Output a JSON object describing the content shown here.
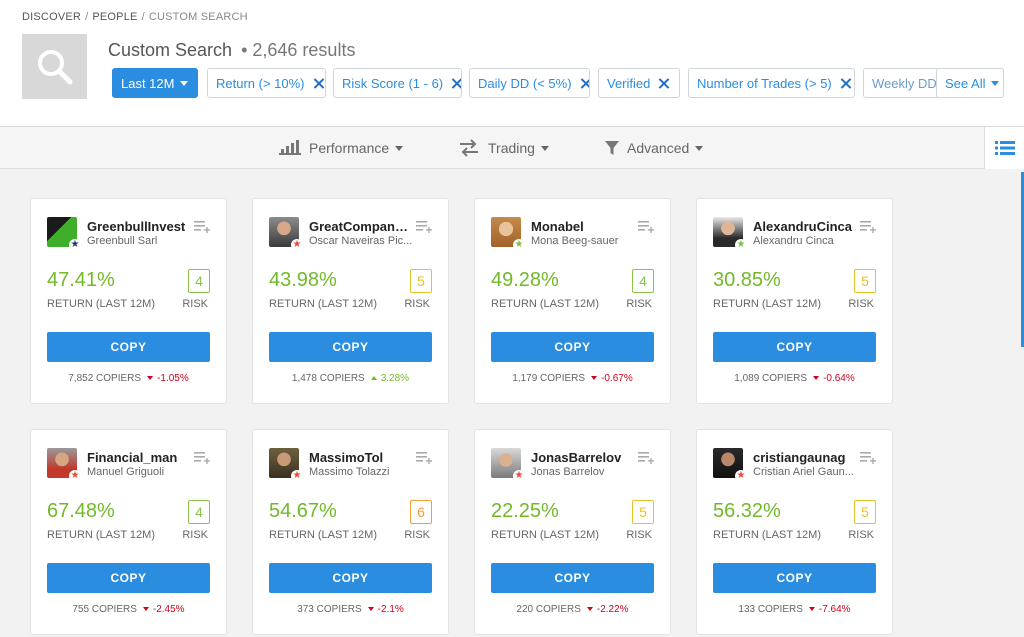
{
  "breadcrumb": {
    "discover": "DISCOVER",
    "people": "PEOPLE",
    "current": "CUSTOM SEARCH",
    "sep": "/"
  },
  "header": {
    "title": "Custom Search",
    "results": "• 2,646 results"
  },
  "filters": {
    "period": "Last 12M",
    "chips": [
      {
        "label": "Return (> 10%)"
      },
      {
        "label": "Risk Score (1 - 6)"
      },
      {
        "label": "Daily DD (< 5%)"
      },
      {
        "label": "Verified"
      },
      {
        "label": "Number of Trades (> 5)"
      },
      {
        "label": "Weekly DD"
      }
    ],
    "see_all": "See All"
  },
  "tabs": [
    {
      "label": "Performance",
      "icon": "bar-chart-icon"
    },
    {
      "label": "Trading",
      "icon": "swap-arrows-icon"
    },
    {
      "label": "Advanced",
      "icon": "funnel-icon"
    }
  ],
  "labels": {
    "return": "RETURN (LAST 12M)",
    "risk": "RISK",
    "copy": "COPY"
  },
  "colors": {
    "accent": "#2a8de0",
    "positive": "#72b92a",
    "negative": "#d0021b",
    "risk_low": "#8bc34a",
    "risk_mid": "#e6c229",
    "risk_high": "#f0a030"
  },
  "traders": [
    {
      "username": "GreenbullInvest",
      "fullname": "Greenbull Sarl",
      "return": "47.41%",
      "risk": "4",
      "copiers": "7,852 COPIERS",
      "change": "-1.05%",
      "direction": "down",
      "badge": "star-navy"
    },
    {
      "username": "GreatCompani...",
      "fullname": "Oscar Naveiras Pic...",
      "return": "43.98%",
      "risk": "5",
      "copiers": "1,478 COPIERS",
      "change": "3.28%",
      "direction": "up",
      "badge": "star-red"
    },
    {
      "username": "Monabel",
      "fullname": "Mona Beeg-sauer",
      "return": "49.28%",
      "risk": "4",
      "copiers": "1,179 COPIERS",
      "change": "-0.67%",
      "direction": "down",
      "badge": "star-green"
    },
    {
      "username": "AlexandruCinca",
      "fullname": "Alexandru Cinca",
      "return": "30.85%",
      "risk": "5",
      "copiers": "1,089 COPIERS",
      "change": "-0.64%",
      "direction": "down",
      "badge": "star-green"
    },
    {
      "username": "Financial_man",
      "fullname": "Manuel Griguoli",
      "return": "67.48%",
      "risk": "4",
      "copiers": "755 COPIERS",
      "change": "-2.45%",
      "direction": "down",
      "badge": "star-red"
    },
    {
      "username": "MassimoTol",
      "fullname": "Massimo Tolazzi",
      "return": "54.67%",
      "risk": "6",
      "copiers": "373 COPIERS",
      "change": "-2.1%",
      "direction": "down",
      "badge": "star-red"
    },
    {
      "username": "JonasBarrelov",
      "fullname": "Jonas Barrelov",
      "return": "22.25%",
      "risk": "5",
      "copiers": "220 COPIERS",
      "change": "-2.22%",
      "direction": "down",
      "badge": "star-red"
    },
    {
      "username": "cristiangaunag",
      "fullname": "Cristian Ariel Gaun...",
      "return": "56.32%",
      "risk": "5",
      "copiers": "133 COPIERS",
      "change": "-7.64%",
      "direction": "down",
      "badge": "star-red"
    }
  ]
}
